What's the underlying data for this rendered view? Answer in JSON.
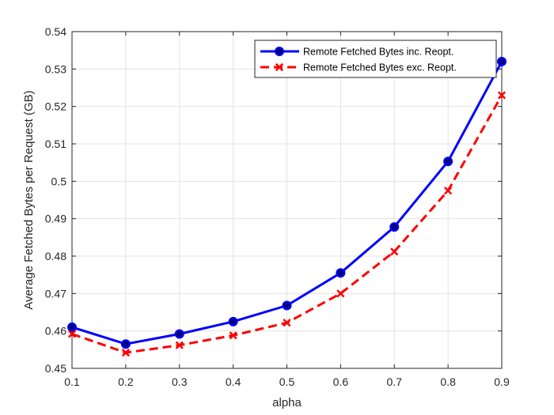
{
  "chart_data": {
    "type": "line",
    "xlabel": "alpha",
    "ylabel": "Average Fetched Bytes per Request (GB)",
    "xlim": [
      0.1,
      0.9
    ],
    "ylim": [
      0.45,
      0.54
    ],
    "x_ticks": [
      "0.1",
      "0.2",
      "0.3",
      "0.4",
      "0.5",
      "0.6",
      "0.7",
      "0.8",
      "0.9"
    ],
    "y_ticks": [
      "0.45",
      "0.46",
      "0.47",
      "0.48",
      "0.49",
      "0.5",
      "0.51",
      "0.52",
      "0.53",
      "0.54"
    ],
    "grid": true,
    "legend_position": "top-right",
    "x": [
      0.1,
      0.2,
      0.3,
      0.4,
      0.5,
      0.6,
      0.7,
      0.8,
      0.9
    ],
    "series": [
      {
        "name": "Remote Fetched Bytes inc. Reopt.",
        "values": [
          0.461,
          0.4565,
          0.4592,
          0.4625,
          0.4668,
          0.4755,
          0.4878,
          0.5053,
          0.532
        ],
        "color": "#0000ff",
        "line_style": "solid",
        "marker": "circle"
      },
      {
        "name": "Remote Fetched Bytes exc. Reopt.",
        "values": [
          0.4592,
          0.4542,
          0.4562,
          0.4588,
          0.4622,
          0.47,
          0.4812,
          0.4975,
          0.523
        ],
        "color": "#ff0000",
        "line_style": "dashed",
        "marker": "x"
      }
    ]
  }
}
